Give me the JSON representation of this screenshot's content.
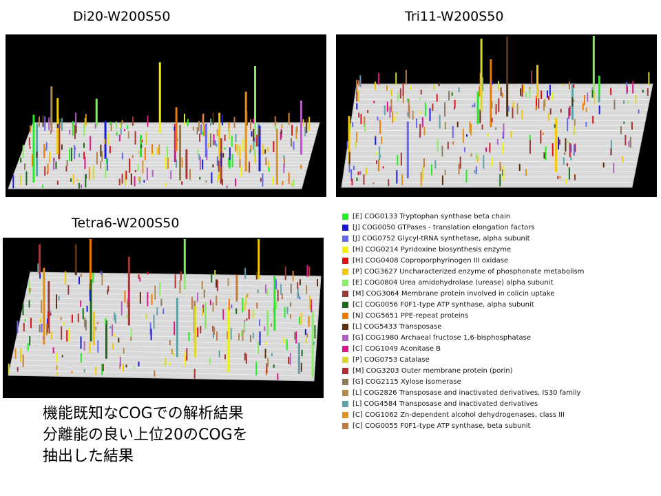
{
  "panels": [
    {
      "title": "Di20-W200S50"
    },
    {
      "title": "Tri11-W200S50"
    },
    {
      "title": "Tetra6-W200S50"
    }
  ],
  "legend": [
    {
      "label": "[E] COG0133 Tryptophan synthase beta chain",
      "color": "#22ee22"
    },
    {
      "label": "[J] COG0050 GTPases - translation elongation factors",
      "color": "#1a1ad6"
    },
    {
      "label": "[J] COG0752 Glycyl-tRNA synthetase, alpha subunit",
      "color": "#6666ee"
    },
    {
      "label": "[H] COG0214 Pyridoxine biosynthesis enzyme",
      "color": "#f2f200"
    },
    {
      "label": "[H] COG0408 Coproporphyrinogen III oxidase",
      "color": "#e01010"
    },
    {
      "label": "[P] COG3627 Uncharacterized enzyme of phosphonate metabolism",
      "color": "#f2c800"
    },
    {
      "label": "[E] COG0804 Urea amidohydrolase (urease) alpha subunit",
      "color": "#88ee66"
    },
    {
      "label": "[M] COG3064 Membrane protein involved in colicin uptake",
      "color": "#9a3a3a"
    },
    {
      "label": "[C] COG0056 F0F1-type ATP synthase, alpha subunit",
      "color": "#1a6a1a"
    },
    {
      "label": "[N] COG5651 PPE-repeat proteins",
      "color": "#f07a00"
    },
    {
      "label": "[L] COG5433 Transposase",
      "color": "#5a3010"
    },
    {
      "label": "[G] COG1980 Archaeal fructose 1,6-bisphosphatase",
      "color": "#b060c0"
    },
    {
      "label": "[C] COG1049 Aconitase B",
      "color": "#e0148a"
    },
    {
      "label": "[P] COG0753 Catalase",
      "color": "#d8d830"
    },
    {
      "label": "[M] COG3203 Outer membrane protein (porin)",
      "color": "#b03030"
    },
    {
      "label": "[G] COG2115 Xylose isomerase",
      "color": "#8a7a5a"
    },
    {
      "label": "[L] COG2826 Transposase and inactivated derivatives, IS30 family",
      "color": "#b08a50"
    },
    {
      "label": "[L] COG4584 Transposase and inactivated derivatives",
      "color": "#60a0a8"
    },
    {
      "label": "[C] COG1062 Zn-dependent alcohol dehydrogenases, class III",
      "color": "#e09020"
    },
    {
      "label": "[C] COG0055 F0F1-type ATP synthase, beta subunit",
      "color": "#c07a40"
    }
  ],
  "note": {
    "line1": "機能既知なCOGでの解析結果",
    "line2": "分離能の良い上位20のCOGを",
    "line3": "抽出した結果"
  }
}
